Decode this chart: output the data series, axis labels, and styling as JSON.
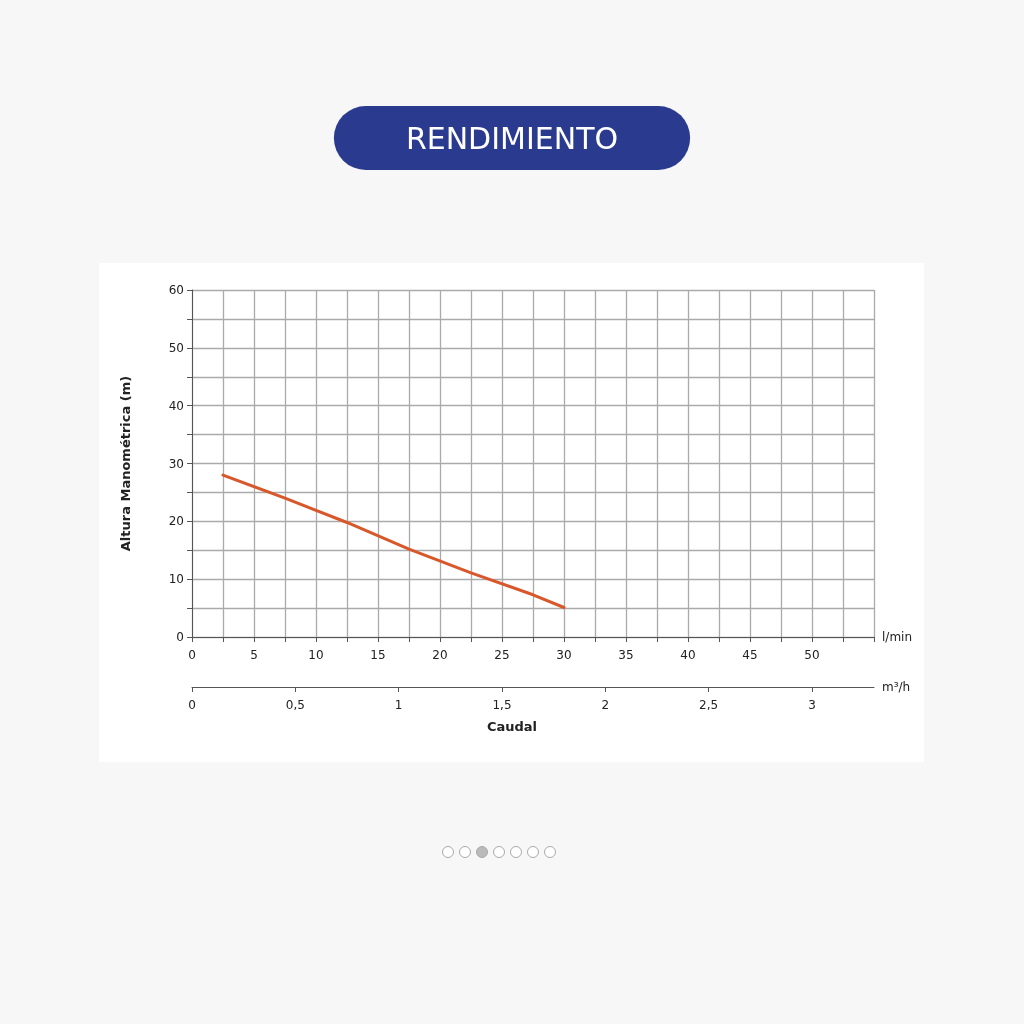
{
  "chart_data": {
    "type": "line",
    "title": "RENDIMIENTO",
    "ylabel": "Altura Manométrica (m)",
    "xlabel": "l/min",
    "x2label": "m³/h",
    "annotations": [
      "Caudal"
    ],
    "x": [
      2.5,
      7.5,
      12.5,
      17.5,
      22.5,
      27.5,
      30
    ],
    "series": [
      {
        "color": "#d9582b",
        "values": [
          28,
          24,
          19.8,
          15.2,
          11.1,
          7.3,
          5.1
        ]
      }
    ],
    "xlim": [
      0,
      55
    ],
    "xticks": [
      0,
      {
        "value": 2.5,
        "label": null
      },
      5,
      {
        "value": 7.5,
        "label": null
      },
      10,
      {
        "value": 12.5,
        "label": null
      },
      15,
      {
        "value": 17.5,
        "label": null
      },
      20,
      {
        "value": 22.5,
        "label": null
      },
      25,
      {
        "value": 27.5,
        "label": null
      },
      30,
      {
        "value": 32.5,
        "label": null
      },
      35,
      {
        "value": 37.5,
        "label": null
      },
      40,
      {
        "value": 42.5,
        "label": null
      },
      45,
      {
        "value": 47.5,
        "label": null
      },
      50,
      {
        "value": 52.5,
        "label": null
      },
      {
        "value": 55,
        "label": null
      }
    ],
    "x2lim": [
      0,
      3.3
    ],
    "x2ticks": [
      0,
      {
        "value": 0.5,
        "label": "0,5"
      },
      1,
      {
        "value": 1.5,
        "label": "1,5"
      },
      2,
      {
        "value": 2.5,
        "label": "2,5"
      },
      3
    ],
    "ylim": [
      0,
      60
    ],
    "yticks": [
      0,
      {
        "value": 5,
        "label": null
      },
      10,
      {
        "value": 15,
        "label": null
      },
      20,
      {
        "value": 25,
        "label": null
      },
      30,
      {
        "value": 35,
        "label": null
      },
      40,
      {
        "value": 45,
        "label": null
      },
      50,
      {
        "value": 55,
        "label": null
      },
      60
    ],
    "grid": true,
    "marker": "none",
    "line_style": "solid"
  }
}
